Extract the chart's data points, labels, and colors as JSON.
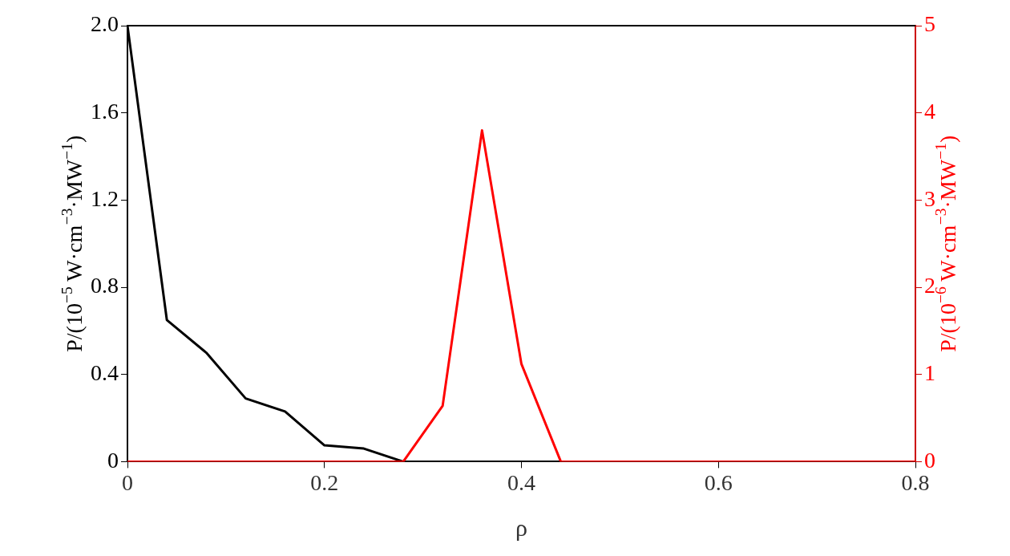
{
  "chart_data": {
    "type": "line",
    "xlabel": "ρ",
    "ylabel": "P/(10$^{−5}$ W·cm$^{−3}$·MW$^{−1}$)",
    "y2label": "P/(10$^{−6}$ W·cm$^{−3}$·MW$^{−1}$)",
    "x": [
      0,
      0.04,
      0.08,
      0.12,
      0.16,
      0.2,
      0.24,
      0.28,
      0.32,
      0.36,
      0.4,
      0.44,
      0.48,
      0.52,
      0.56,
      0.6,
      0.64,
      0.68,
      0.72,
      0.76,
      0.8
    ],
    "series": [
      {
        "color": "#000000",
        "values": [
          2.0,
          0.65,
          0.5,
          0.29,
          0.23,
          0.075,
          0.06,
          0,
          0,
          0,
          0,
          0,
          0,
          0,
          0,
          0,
          0,
          0,
          0,
          0,
          0
        ]
      },
      {
        "color": "#ff0000",
        "axis": "y2",
        "values": [
          0,
          0,
          0,
          0,
          0,
          0,
          0,
          0,
          0.64,
          3.8,
          1.12,
          0,
          0,
          0,
          0,
          0,
          0,
          0,
          0,
          0,
          0
        ]
      }
    ],
    "xlim": [
      0,
      0.8
    ],
    "xticks": [
      0,
      {
        "value": 0.2,
        "label": "0.2"
      },
      {
        "value": 0.4,
        "label": "0.4"
      },
      {
        "value": 0.6,
        "label": "0.6"
      },
      {
        "value": 0.8,
        "label": "0.8"
      }
    ],
    "ylim": [
      0,
      2
    ],
    "yticks": [
      0,
      {
        "value": 0.4,
        "label": "0.4"
      },
      {
        "value": 0.8,
        "label": "0.8"
      },
      {
        "value": 1.2,
        "label": "1.2"
      },
      {
        "value": 1.6,
        "label": "1.6"
      },
      {
        "value": 2,
        "label": "2.0"
      }
    ],
    "y2lim": [
      0,
      5
    ],
    "y2ticks": [
      0,
      1,
      2,
      3,
      4,
      5
    ],
    "grid": false,
    "legend": false,
    "marker": "none",
    "line_style": "solid"
  }
}
